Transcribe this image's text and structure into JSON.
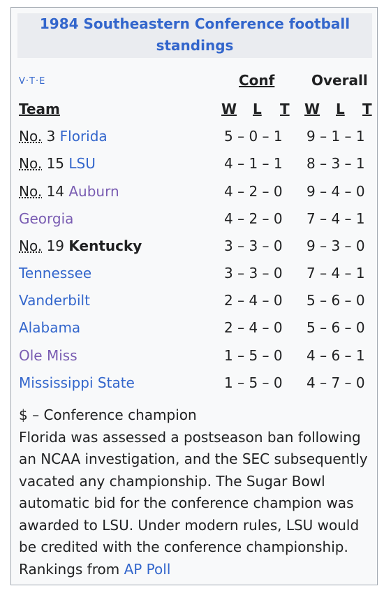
{
  "title": "1984 Southeastern Conference football standings",
  "vte": {
    "v": "V",
    "t": "T",
    "e": "E"
  },
  "group_headers": {
    "conf": "Conf",
    "overall": "Overall"
  },
  "columns": {
    "team": "Team",
    "w": "W",
    "l": "L",
    "t": "T"
  },
  "rows": [
    {
      "rank": "No.",
      "num": "3",
      "team": "Florida",
      "conf": "5 – 0 – 1",
      "overall": "9 – 1 – 1"
    },
    {
      "rank": "No.",
      "num": "15",
      "team": "LSU",
      "conf": "4 – 1 – 1",
      "overall": "8 – 3 – 1"
    },
    {
      "rank": "No.",
      "num": "14",
      "team": "Auburn",
      "conf": "4 – 2 – 0",
      "overall": "9 – 4 – 0"
    },
    {
      "rank": "",
      "num": "",
      "team": "Georgia",
      "conf": "4 – 2 – 0",
      "overall": "7 – 4 – 1"
    },
    {
      "rank": "No.",
      "num": "19",
      "team": "Kentucky",
      "conf": "3 – 3 – 0",
      "overall": "9 – 3 – 0"
    },
    {
      "rank": "",
      "num": "",
      "team": "Tennessee",
      "conf": "3 – 3 – 0",
      "overall": "7 – 4 – 1"
    },
    {
      "rank": "",
      "num": "",
      "team": "Vanderbilt",
      "conf": "2 – 4 – 0",
      "overall": "5 – 6 – 0"
    },
    {
      "rank": "",
      "num": "",
      "team": "Alabama",
      "conf": "2 – 4 – 0",
      "overall": "5 – 6 – 0"
    },
    {
      "rank": "",
      "num": "",
      "team": "Ole Miss",
      "conf": "1 – 5 – 0",
      "overall": "4 – 6 – 1"
    },
    {
      "rank": "",
      "num": "",
      "team": "Mississippi State",
      "conf": "1 – 5 – 0",
      "overall": "4 – 7 – 0"
    }
  ],
  "notes": {
    "champion": "$ – Conference champion",
    "florida": "Florida was assessed a postseason ban following an NCAA investigation, and the SEC subsequently vacated any championship. The Sugar Bowl automatic bid for the conference champion was awarded to LSU. Under modern rules, LSU would be credited with the conference championship.",
    "rankings_prefix": "Rankings from",
    "rankings_link": "AP Poll"
  },
  "colors": {
    "link": "#3366cc",
    "visited_link": "#795cb2",
    "text": "#202122",
    "title_bg": "#eaecf0",
    "box_bg": "#f8f9fa",
    "border": "#a2a9b1"
  }
}
